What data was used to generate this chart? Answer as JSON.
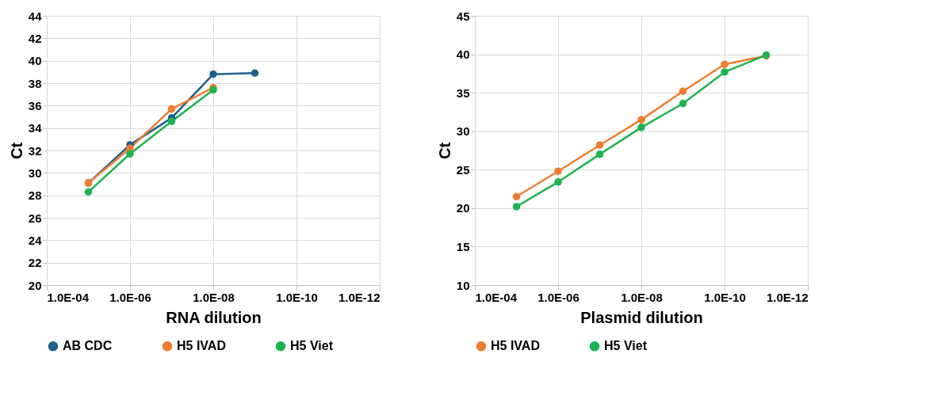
{
  "chart_data": [
    {
      "type": "line",
      "xlabel": "RNA dilution",
      "ylabel": "Ct",
      "log": "x",
      "x": [
        1e-05,
        1e-06,
        1e-07,
        1e-08,
        1e-09
      ],
      "xlim": [
        0.0001,
        1e-12
      ],
      "xticks": [
        {
          "value": 0.0001,
          "label": "1.0E-04"
        },
        {
          "value": 1e-06,
          "label": "1.0E-06"
        },
        {
          "value": 1e-08,
          "label": "1.0E-08"
        },
        {
          "value": 1e-10,
          "label": "1.0E-10"
        },
        {
          "value": 1e-12,
          "label": "1.0E-12"
        }
      ],
      "ylim": [
        20,
        44
      ],
      "yticks": [
        20,
        22,
        24,
        26,
        28,
        30,
        32,
        34,
        36,
        38,
        40,
        42,
        44
      ],
      "grid": true,
      "marker": "circle",
      "line_style": "solid",
      "legend": "bottom",
      "series": [
        {
          "name": "AB CDC",
          "color": "#1f5f8b",
          "values": [
            29.1,
            32.5,
            34.9,
            38.8,
            38.9
          ]
        },
        {
          "name": "H5 IVAD",
          "color": "#ed7d31",
          "values": [
            29.1,
            32.2,
            35.7,
            37.6,
            null
          ]
        },
        {
          "name": "H5 Viet",
          "color": "#1db34f",
          "values": [
            28.3,
            31.7,
            34.6,
            37.4,
            null
          ]
        }
      ]
    },
    {
      "type": "line",
      "xlabel": "Plasmid dilution",
      "ylabel": "Ct",
      "log": "x",
      "x": [
        1e-05,
        1e-06,
        1e-07,
        1e-08,
        1e-09,
        1e-10,
        1e-11
      ],
      "xlim": [
        0.0001,
        1e-12
      ],
      "xticks": [
        {
          "value": 0.0001,
          "label": "1.0E-04"
        },
        {
          "value": 1e-06,
          "label": "1.0E-06"
        },
        {
          "value": 1e-08,
          "label": "1.0E-08"
        },
        {
          "value": 1e-10,
          "label": "1.0E-10"
        },
        {
          "value": 1e-12,
          "label": "1.0E-12"
        }
      ],
      "ylim": [
        10,
        45
      ],
      "yticks": [
        10,
        15,
        20,
        25,
        30,
        35,
        40,
        45
      ],
      "grid": true,
      "marker": "circle",
      "line_style": "solid",
      "legend": "bottom",
      "series": [
        {
          "name": "H5 IVAD",
          "color": "#ed7d31",
          "values": [
            21.5,
            24.8,
            28.2,
            31.5,
            35.2,
            38.7,
            39.8
          ]
        },
        {
          "name": "H5 Viet",
          "color": "#1db34f",
          "values": [
            20.2,
            23.4,
            27.0,
            30.5,
            33.6,
            37.7,
            39.9
          ]
        }
      ]
    }
  ]
}
